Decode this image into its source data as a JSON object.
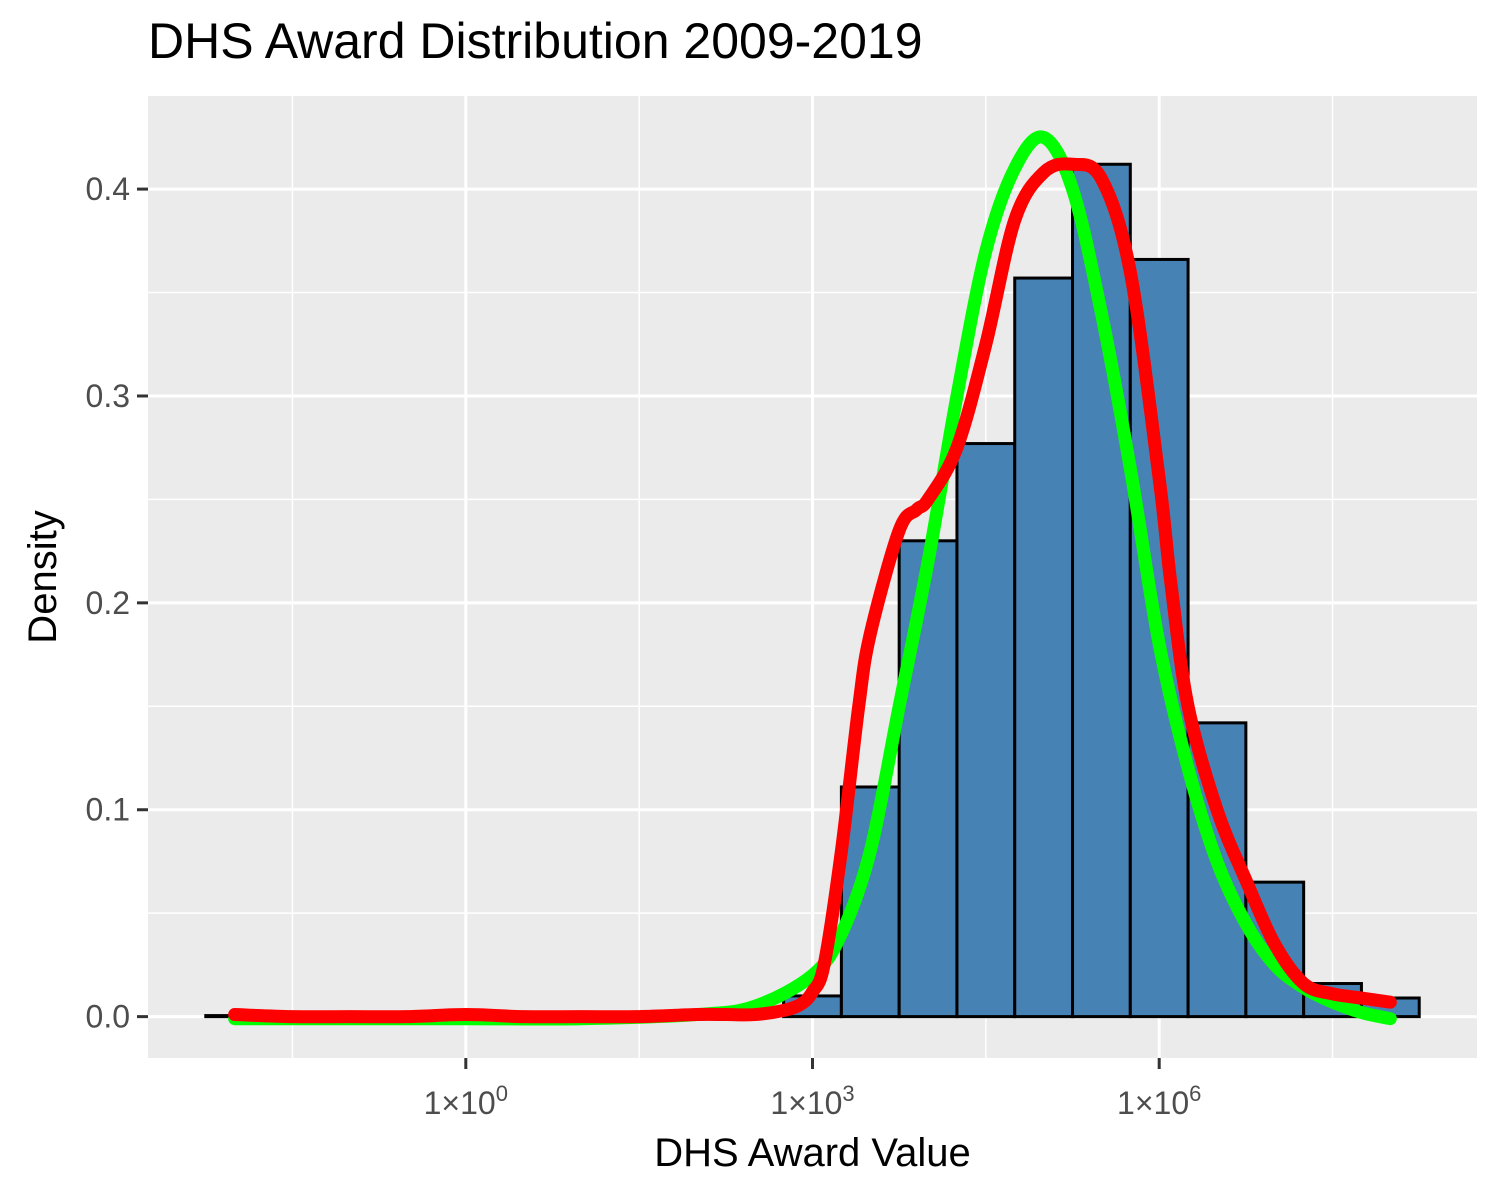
{
  "chart_data": {
    "type": "bar",
    "title": "DHS Award Distribution 2009-2019",
    "xlabel": "DHS Award Value",
    "ylabel": "Density",
    "x_scale": "log10",
    "xlim_log10": [
      -2.75,
      8.75
    ],
    "ylim": [
      -0.02,
      0.445
    ],
    "y_ticks": [
      0.0,
      0.1,
      0.2,
      0.3,
      0.4
    ],
    "y_tick_labels": [
      "0.0",
      "0.1",
      "0.2",
      "0.3",
      "0.4"
    ],
    "x_ticks": [
      {
        "exp": 0,
        "mantissa": "1",
        "times": "×",
        "base": "10",
        "sup": "0"
      },
      {
        "exp": 3,
        "mantissa": "1",
        "times": "×",
        "base": "10",
        "sup": "3"
      },
      {
        "exp": 6,
        "mantissa": "1",
        "times": "×",
        "base": "10",
        "sup": "6"
      }
    ],
    "grid": true,
    "background": "#ebebeb",
    "grid_color": "#ffffff",
    "bar_fill": "#4682b4",
    "bar_outline": "#000000",
    "bins": [
      {
        "x0": -2.25,
        "x1": -1.75,
        "density": 0.0005
      },
      {
        "x0": 2.75,
        "x1": 3.25,
        "density": 0.01
      },
      {
        "x0": 3.25,
        "x1": 3.75,
        "density": 0.111
      },
      {
        "x0": 3.75,
        "x1": 4.25,
        "density": 0.23
      },
      {
        "x0": 4.25,
        "x1": 4.75,
        "density": 0.277
      },
      {
        "x0": 4.75,
        "x1": 5.25,
        "density": 0.357
      },
      {
        "x0": 5.25,
        "x1": 5.75,
        "density": 0.412
      },
      {
        "x0": 5.75,
        "x1": 6.25,
        "density": 0.366
      },
      {
        "x0": 6.25,
        "x1": 6.75,
        "density": 0.142
      },
      {
        "x0": 6.75,
        "x1": 7.25,
        "density": 0.065
      },
      {
        "x0": 7.25,
        "x1": 7.75,
        "density": 0.016
      },
      {
        "x0": 7.75,
        "x1": 8.25,
        "density": 0.009
      }
    ],
    "series": [
      {
        "color": "#00ff00",
        "stroke": "normal-curve",
        "x": [
          -2.0,
          -1.0,
          0.0,
          1.0,
          2.0,
          2.5,
          3.0,
          3.25,
          3.5,
          3.75,
          4.0,
          4.25,
          4.5,
          4.75,
          5.0,
          5.25,
          5.5,
          5.75,
          6.0,
          6.25,
          6.5,
          6.75,
          7.0,
          7.25,
          7.5,
          7.75,
          8.0
        ],
        "y": [
          -0.001,
          -0.001,
          -0.001,
          -0.001,
          0.001,
          0.005,
          0.02,
          0.04,
          0.08,
          0.15,
          0.22,
          0.3,
          0.37,
          0.41,
          0.425,
          0.4,
          0.34,
          0.265,
          0.18,
          0.12,
          0.075,
          0.045,
          0.025,
          0.014,
          0.007,
          0.002,
          -0.001
        ]
      },
      {
        "color": "#ff0000",
        "stroke": "kernel-density",
        "x": [
          -2.0,
          -1.5,
          -1.0,
          -0.5,
          0.0,
          0.5,
          1.0,
          1.5,
          2.0,
          2.25,
          2.5,
          2.75,
          2.9,
          3.0,
          3.1,
          3.25,
          3.4,
          3.5,
          3.75,
          3.9,
          4.0,
          4.25,
          4.5,
          4.75,
          5.0,
          5.25,
          5.5,
          5.75,
          6.0,
          6.1,
          6.25,
          6.5,
          6.75,
          7.0,
          7.25,
          7.5,
          7.75,
          8.0
        ],
        "y": [
          0.001,
          0.0,
          0.0,
          0.0,
          0.001,
          0.0,
          0.0,
          0.0,
          0.001,
          0.001,
          0.001,
          0.003,
          0.006,
          0.012,
          0.025,
          0.08,
          0.15,
          0.185,
          0.235,
          0.245,
          0.25,
          0.275,
          0.325,
          0.385,
          0.408,
          0.412,
          0.405,
          0.36,
          0.26,
          0.21,
          0.15,
          0.1,
          0.066,
          0.035,
          0.016,
          0.011,
          0.009,
          0.007
        ]
      }
    ]
  }
}
